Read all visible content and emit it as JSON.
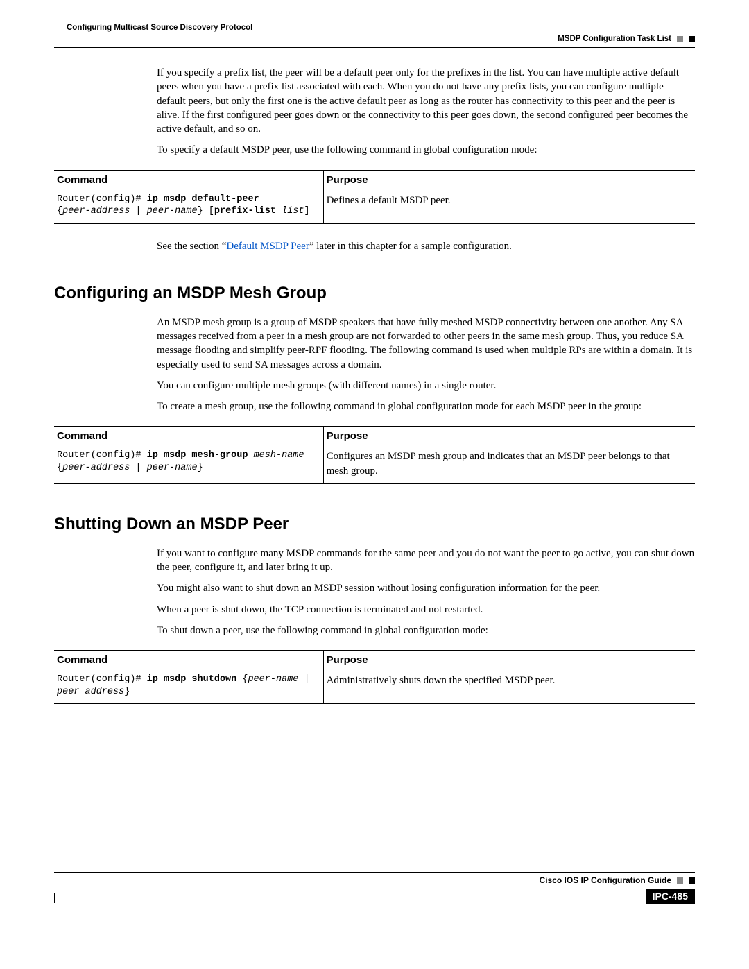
{
  "header": {
    "chapter": "Configuring Multicast Source Discovery Protocol",
    "section": "MSDP Configuration Task List"
  },
  "intro": {
    "p1": "If you specify a prefix list, the peer will be a default peer only for the prefixes in the list. You can have multiple active default peers when you have a prefix list associated with each. When you do not have any prefix lists, you can configure multiple default peers, but only the first one is the active default peer as long as the router has connectivity to this peer and the peer is alive. If the first configured peer goes down or the connectivity to this peer goes down, the second configured peer becomes the active default, and so on.",
    "p2": "To specify a default MSDP peer, use the following command in global configuration mode:"
  },
  "table1": {
    "col_command": "Command",
    "col_purpose": "Purpose",
    "cmd_prefix": "Router(config)# ",
    "cmd_bold1": "ip msdp default-peer",
    "cmd_line2_open": "{",
    "cmd_arg1": "peer-address",
    "cmd_pipe": " | ",
    "cmd_arg2": "peer-name",
    "cmd_close_space": "} [",
    "cmd_bold2": "prefix-list",
    "cmd_space": " ",
    "cmd_arg3": "list",
    "cmd_close": "]",
    "purpose": "Defines a default MSDP peer."
  },
  "seeSection": {
    "pre": "See the section ",
    "link": "Default MSDP Peer",
    "post": " later in this chapter for a sample configuration."
  },
  "mesh": {
    "heading": "Configuring an MSDP Mesh Group",
    "p1": "An MSDP mesh group is a group of MSDP speakers that have fully meshed MSDP connectivity between one another. Any SA messages received from a peer in a mesh group are not forwarded to other peers in the same mesh group. Thus, you reduce SA message flooding and simplify peer-RPF flooding. The following command is used when multiple RPs are within a domain. It is especially used to send SA messages across a domain.",
    "p2": "You can configure multiple mesh groups (with different names) in a single router.",
    "p3": "To create a mesh group, use the following command in global configuration mode for each MSDP peer in the group:"
  },
  "table2": {
    "col_command": "Command",
    "col_purpose": "Purpose",
    "cmd_prefix": "Router(config)# ",
    "cmd_bold1": "ip msdp mesh-group",
    "cmd_space": " ",
    "cmd_arg_mesh": "mesh-name",
    "cmd_line2_open": "{",
    "cmd_arg1": "peer-address",
    "cmd_pipe": " | ",
    "cmd_arg2": "peer-name",
    "cmd_close": "}",
    "purpose": "Configures an MSDP mesh group and indicates that an MSDP peer belongs to that mesh group."
  },
  "shutdown": {
    "heading": "Shutting Down an MSDP Peer",
    "p1": "If you want to configure many MSDP commands for the same peer and you do not want the peer to go active, you can shut down the peer, configure it, and later bring it up.",
    "p2": "You might also want to shut down an MSDP session without losing configuration information for the peer.",
    "p3": "When a peer is shut down, the TCP connection is terminated and not restarted.",
    "p4": "To shut down a peer, use the following command in global configuration mode:"
  },
  "table3": {
    "col_command": "Command",
    "col_purpose": "Purpose",
    "cmd_prefix": "Router(config)# ",
    "cmd_bold1": "ip msdp shutdown",
    "cmd_space_open": " {",
    "cmd_arg1": "peer-name",
    "cmd_pipe": " | ",
    "cmd_arg2": "peer address",
    "cmd_close": "}",
    "purpose": "Administratively shuts down the specified MSDP peer."
  },
  "footer": {
    "guide": "Cisco IOS IP Configuration Guide",
    "page": "IPC-485"
  },
  "style": {
    "link_color": "#0054c8",
    "body_font": "Times New Roman",
    "heading_font": "Arial",
    "mono_font": "Courier New"
  }
}
